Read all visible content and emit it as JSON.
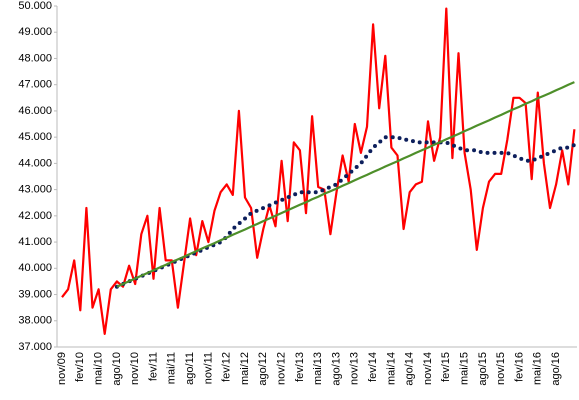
{
  "chart_data": {
    "type": "line",
    "categories": [
      "nov/09",
      null,
      null,
      "fev/10",
      null,
      null,
      "mai/10",
      null,
      null,
      "ago/10",
      null,
      null,
      "nov/10",
      null,
      null,
      "fev/11",
      null,
      null,
      "mai/11",
      null,
      null,
      "ago/11",
      null,
      null,
      "nov/11",
      null,
      null,
      "fev/12",
      null,
      null,
      "mai/12",
      null,
      null,
      "ago/12",
      null,
      null,
      "nov/12",
      null,
      null,
      "fev/13",
      null,
      null,
      "mai/13",
      null,
      null,
      "ago/13",
      null,
      null,
      "nov/13",
      null,
      null,
      "fev/14",
      null,
      null,
      "mai/14",
      null,
      null,
      "ago/14",
      null,
      null,
      "nov/14",
      null,
      null,
      "fev/15",
      null,
      null,
      "mai/15",
      null,
      null,
      "ago/15",
      null,
      null,
      "nov/15",
      null,
      null,
      "fev/16",
      null,
      null,
      "mai/16",
      null,
      null,
      "ago/16",
      null,
      null,
      null
    ],
    "series": [
      {
        "color": "#ff0000",
        "style": "solid",
        "values": [
          38900,
          39200,
          40300,
          38400,
          42300,
          38500,
          39200,
          37500,
          39200,
          39500,
          39300,
          40100,
          39400,
          41300,
          42000,
          39600,
          42300,
          40300,
          40300,
          38500,
          40200,
          41900,
          40500,
          41800,
          41000,
          42200,
          42900,
          43200,
          42800,
          46000,
          42700,
          42300,
          40400,
          41500,
          42400,
          41600,
          44100,
          41800,
          44800,
          44500,
          42100,
          45800,
          43100,
          43000,
          41300,
          42900,
          44300,
          43300,
          45500,
          44400,
          45400,
          49300,
          46100,
          48100,
          44600,
          44300,
          41500,
          42900,
          43200,
          43300,
          45600,
          44100,
          45000,
          49900,
          44200,
          48200,
          44400,
          43000,
          40700,
          42300,
          43300,
          43600,
          43600,
          44900,
          46500,
          46500,
          46300,
          43400,
          46700,
          44000,
          42300,
          43200,
          44500,
          43200,
          45300
        ]
      },
      {
        "color": "#0d1f5c",
        "style": "dotted",
        "values": [
          null,
          null,
          null,
          null,
          null,
          null,
          null,
          null,
          null,
          39300,
          39400,
          39500,
          39600,
          39700,
          39800,
          39900,
          40000,
          40100,
          40200,
          40300,
          40400,
          40500,
          40600,
          40700,
          40800,
          40900,
          41000,
          41200,
          41500,
          41700,
          41900,
          42100,
          42200,
          42300,
          42400,
          42500,
          42600,
          42700,
          42800,
          42900,
          42900,
          42900,
          42900,
          43000,
          43100,
          43200,
          43400,
          43600,
          43800,
          44000,
          44300,
          44600,
          44800,
          45000,
          45000,
          45000,
          44900,
          44900,
          44800,
          44800,
          44800,
          44800,
          44800,
          44800,
          44700,
          44600,
          44500,
          44500,
          44500,
          44400,
          44400,
          44400,
          44400,
          44400,
          44300,
          44200,
          44100,
          44100,
          44200,
          44300,
          44400,
          44500,
          44600,
          44600,
          44700
        ]
      },
      {
        "color": "#4e8f2a",
        "style": "solid",
        "values": [
          null,
          null,
          null,
          null,
          null,
          null,
          null,
          null,
          null,
          39300,
          39400,
          39510,
          39610,
          39720,
          39820,
          39920,
          40030,
          40130,
          40240,
          40340,
          40440,
          40550,
          40650,
          40760,
          40860,
          40960,
          41070,
          41170,
          41280,
          41380,
          41480,
          41590,
          41690,
          41800,
          41900,
          42000,
          42110,
          42210,
          42320,
          42420,
          42520,
          42630,
          42730,
          42840,
          42940,
          43040,
          43150,
          43250,
          43360,
          43460,
          43560,
          43670,
          43770,
          43880,
          43980,
          44080,
          44190,
          44290,
          44400,
          44500,
          44600,
          44710,
          44810,
          44920,
          45020,
          45120,
          45230,
          45330,
          45440,
          45540,
          45640,
          45750,
          45850,
          45960,
          46060,
          46160,
          46270,
          46370,
          46480,
          46580,
          46680,
          46790,
          46890,
          47000,
          47100
        ]
      }
    ],
    "ylim": [
      37000,
      50000
    ],
    "yticks": [
      {
        "value": 37000,
        "label": "37.000"
      },
      {
        "value": 38000,
        "label": "38.000"
      },
      {
        "value": 39000,
        "label": "39.000"
      },
      {
        "value": 40000,
        "label": "40.000"
      },
      {
        "value": 41000,
        "label": "41.000"
      },
      {
        "value": 42000,
        "label": "42.000"
      },
      {
        "value": 43000,
        "label": "43.000"
      },
      {
        "value": 44000,
        "label": "44.000"
      },
      {
        "value": 45000,
        "label": "45.000"
      },
      {
        "value": 46000,
        "label": "46.000"
      },
      {
        "value": 47000,
        "label": "47.000"
      },
      {
        "value": 48000,
        "label": "48.000"
      },
      {
        "value": 49000,
        "label": "49.000"
      },
      {
        "value": 50000,
        "label": "50.000"
      }
    ],
    "grid": false
  }
}
